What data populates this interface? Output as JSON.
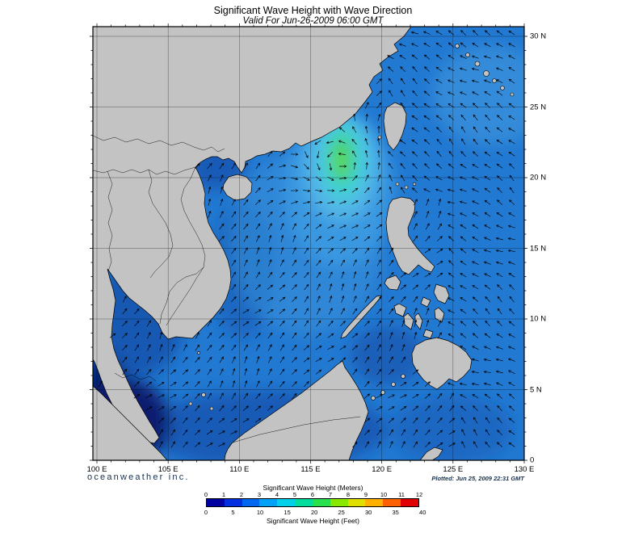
{
  "header": {
    "title": "Significant Wave Height with Wave Direction",
    "valid_time": "Valid For Jun-26-2009 06:00 GMT"
  },
  "axes": {
    "longitude": [
      {
        "label": "100 E",
        "lon": 100
      },
      {
        "label": "105 E",
        "lon": 105
      },
      {
        "label": "110 E",
        "lon": 110
      },
      {
        "label": "115 E",
        "lon": 115
      },
      {
        "label": "120 E",
        "lon": 120
      },
      {
        "label": "125 E",
        "lon": 125
      },
      {
        "label": "130 E",
        "lon": 130
      }
    ],
    "latitude": [
      {
        "label": "30 N",
        "lat": 30
      },
      {
        "label": "25 N",
        "lat": 25
      },
      {
        "label": "20 N",
        "lat": 20
      },
      {
        "label": "15 N",
        "lat": 15
      },
      {
        "label": "10 N",
        "lat": 10
      },
      {
        "label": "5 N",
        "lat": 5
      },
      {
        "label": "0",
        "lat": 0
      }
    ]
  },
  "legend": {
    "meters_title": "Significant Wave Height (Meters)",
    "feet_title": "Significant Wave Height (Feet)",
    "meter_ticks": [
      0,
      1,
      2,
      3,
      4,
      5,
      6,
      7,
      8,
      9,
      10,
      11,
      12
    ],
    "feet_ticks": [
      0,
      5,
      10,
      15,
      20,
      25,
      30,
      35,
      40
    ],
    "colors": [
      "#0000a0",
      "#0030e0",
      "#0068f0",
      "#00a2f8",
      "#00d0e8",
      "#00dc9c",
      "#28e04c",
      "#88e800",
      "#e0e000",
      "#ffb000",
      "#ff6000",
      "#e00000"
    ]
  },
  "footer": {
    "branding": "oceanweather inc.",
    "plotted": "Plotted: Jun 25, 2009 22:31 GMT"
  },
  "map_colors": {
    "land": "#c3c3c3",
    "coastline": "#000000",
    "ocean_base": "#2279d2",
    "ocean_light": "#3b93dc",
    "ocean_shallow_dark": "#1558b2",
    "strait_navy": "#071d6e",
    "strait_darkest": "#03104e",
    "peak_halo": "#3c9ae2",
    "peak_light": "#53b8e8",
    "peak_cyan": "#3fd2d8",
    "peak_green": "#46cf63",
    "peak_core": "#63dc45",
    "grid": "#000000",
    "arrow": "#000000"
  }
}
